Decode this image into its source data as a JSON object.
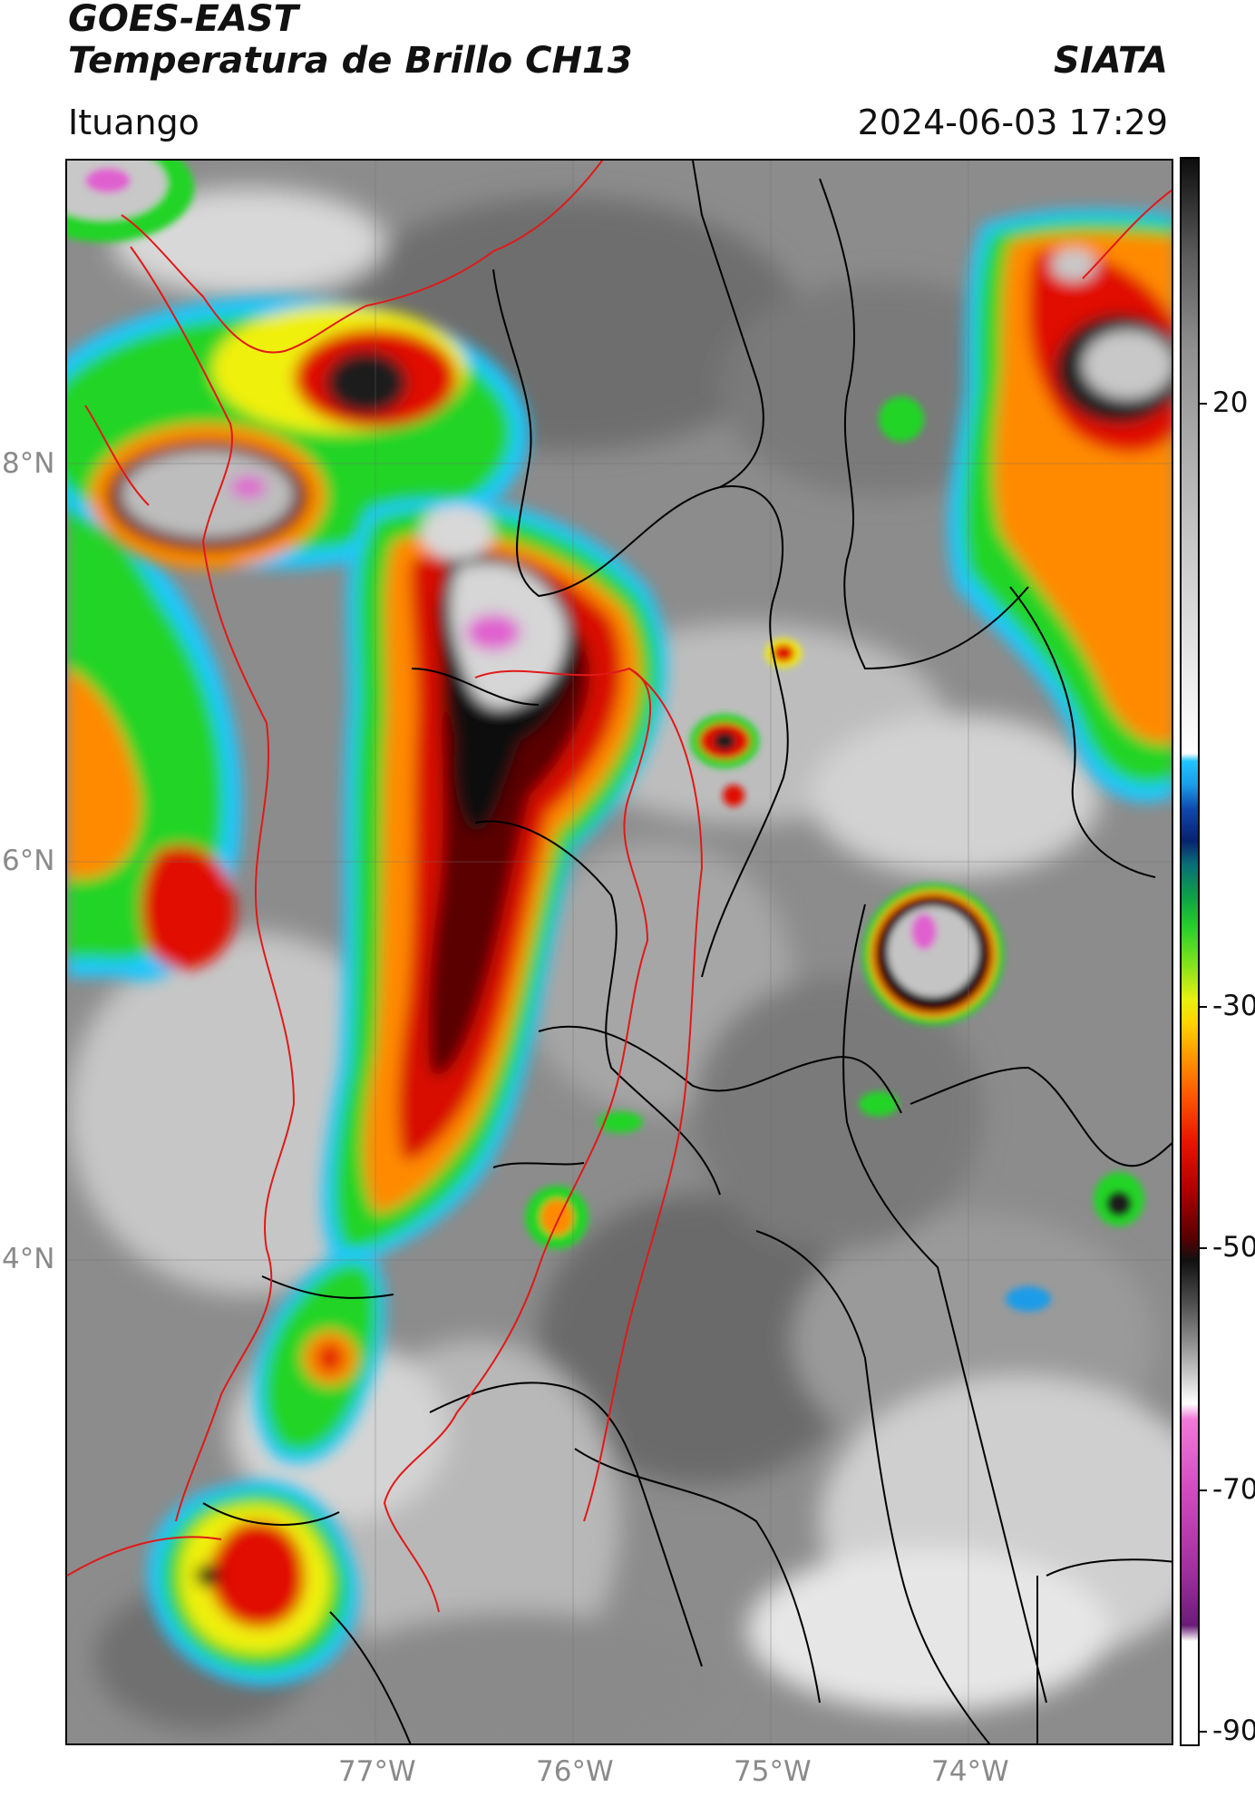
{
  "header": {
    "title_line1": "GOES-EAST",
    "title_line2": "Temperatura de Brillo CH13",
    "org": "SIATA",
    "location": "Ituango",
    "timestamp": "2024-06-03 17:29"
  },
  "map": {
    "lat_labels": [
      "8°N",
      "6°N",
      "4°N"
    ],
    "lon_labels": [
      "77°W",
      "76°W",
      "75°W",
      "74°W"
    ]
  },
  "colorbar": {
    "ticks": [
      "20",
      "-30",
      "-50",
      "-70",
      "-90"
    ],
    "palette": {
      "warm_gray": "#808080",
      "cyan": "#1ec8ff",
      "blue": "#0a2a8c",
      "green": "#22d428",
      "yellow": "#f0f010",
      "orange": "#ff8a00",
      "red": "#e01000",
      "dark_red": "#600000",
      "black": "#0a0a0a",
      "light_gray": "#d8d8d8",
      "magenta": "#e060d0",
      "purple": "#7a2080"
    }
  }
}
